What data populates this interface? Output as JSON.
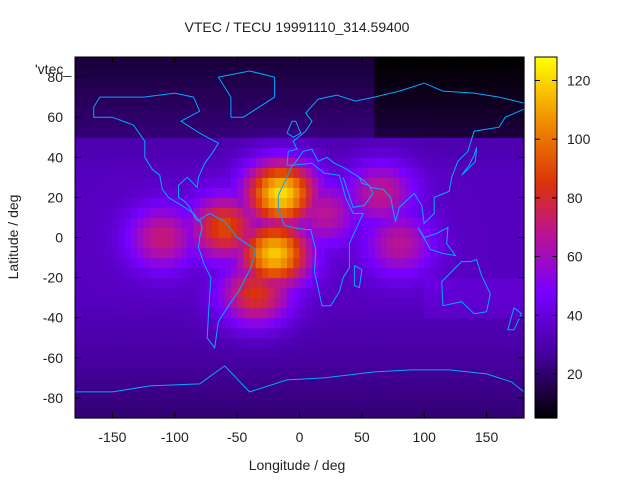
{
  "chart_data": {
    "type": "heatmap",
    "title": "VTEC / TECU 19991110_314.59400",
    "xlabel": "Longitude / deg",
    "ylabel": "Latitude / deg",
    "legend_key": "'vtec_",
    "xlim": [
      -180,
      180
    ],
    "ylim": [
      -90,
      90
    ],
    "x_ticks": [
      -150,
      -100,
      -50,
      0,
      50,
      100,
      150
    ],
    "y_ticks": [
      -80,
      -60,
      -40,
      -20,
      0,
      20,
      40,
      60,
      80
    ],
    "colorbar": {
      "range": [
        5,
        128
      ],
      "ticks": [
        20,
        40,
        60,
        80,
        100,
        120
      ]
    },
    "grid": false,
    "coastline_color": "#00aaff",
    "hotspots": [
      {
        "lon": -15,
        "lat": 22,
        "value": 122
      },
      {
        "lon": -20,
        "lat": -8,
        "value": 118
      },
      {
        "lon": -60,
        "lat": 5,
        "value": 90
      },
      {
        "lon": -35,
        "lat": -28,
        "value": 85
      },
      {
        "lon": -110,
        "lat": 0,
        "value": 72
      },
      {
        "lon": 65,
        "lat": 22,
        "value": 70
      },
      {
        "lon": 80,
        "lat": -3,
        "value": 68
      },
      {
        "lon": 20,
        "lat": 12,
        "value": 68
      }
    ]
  }
}
